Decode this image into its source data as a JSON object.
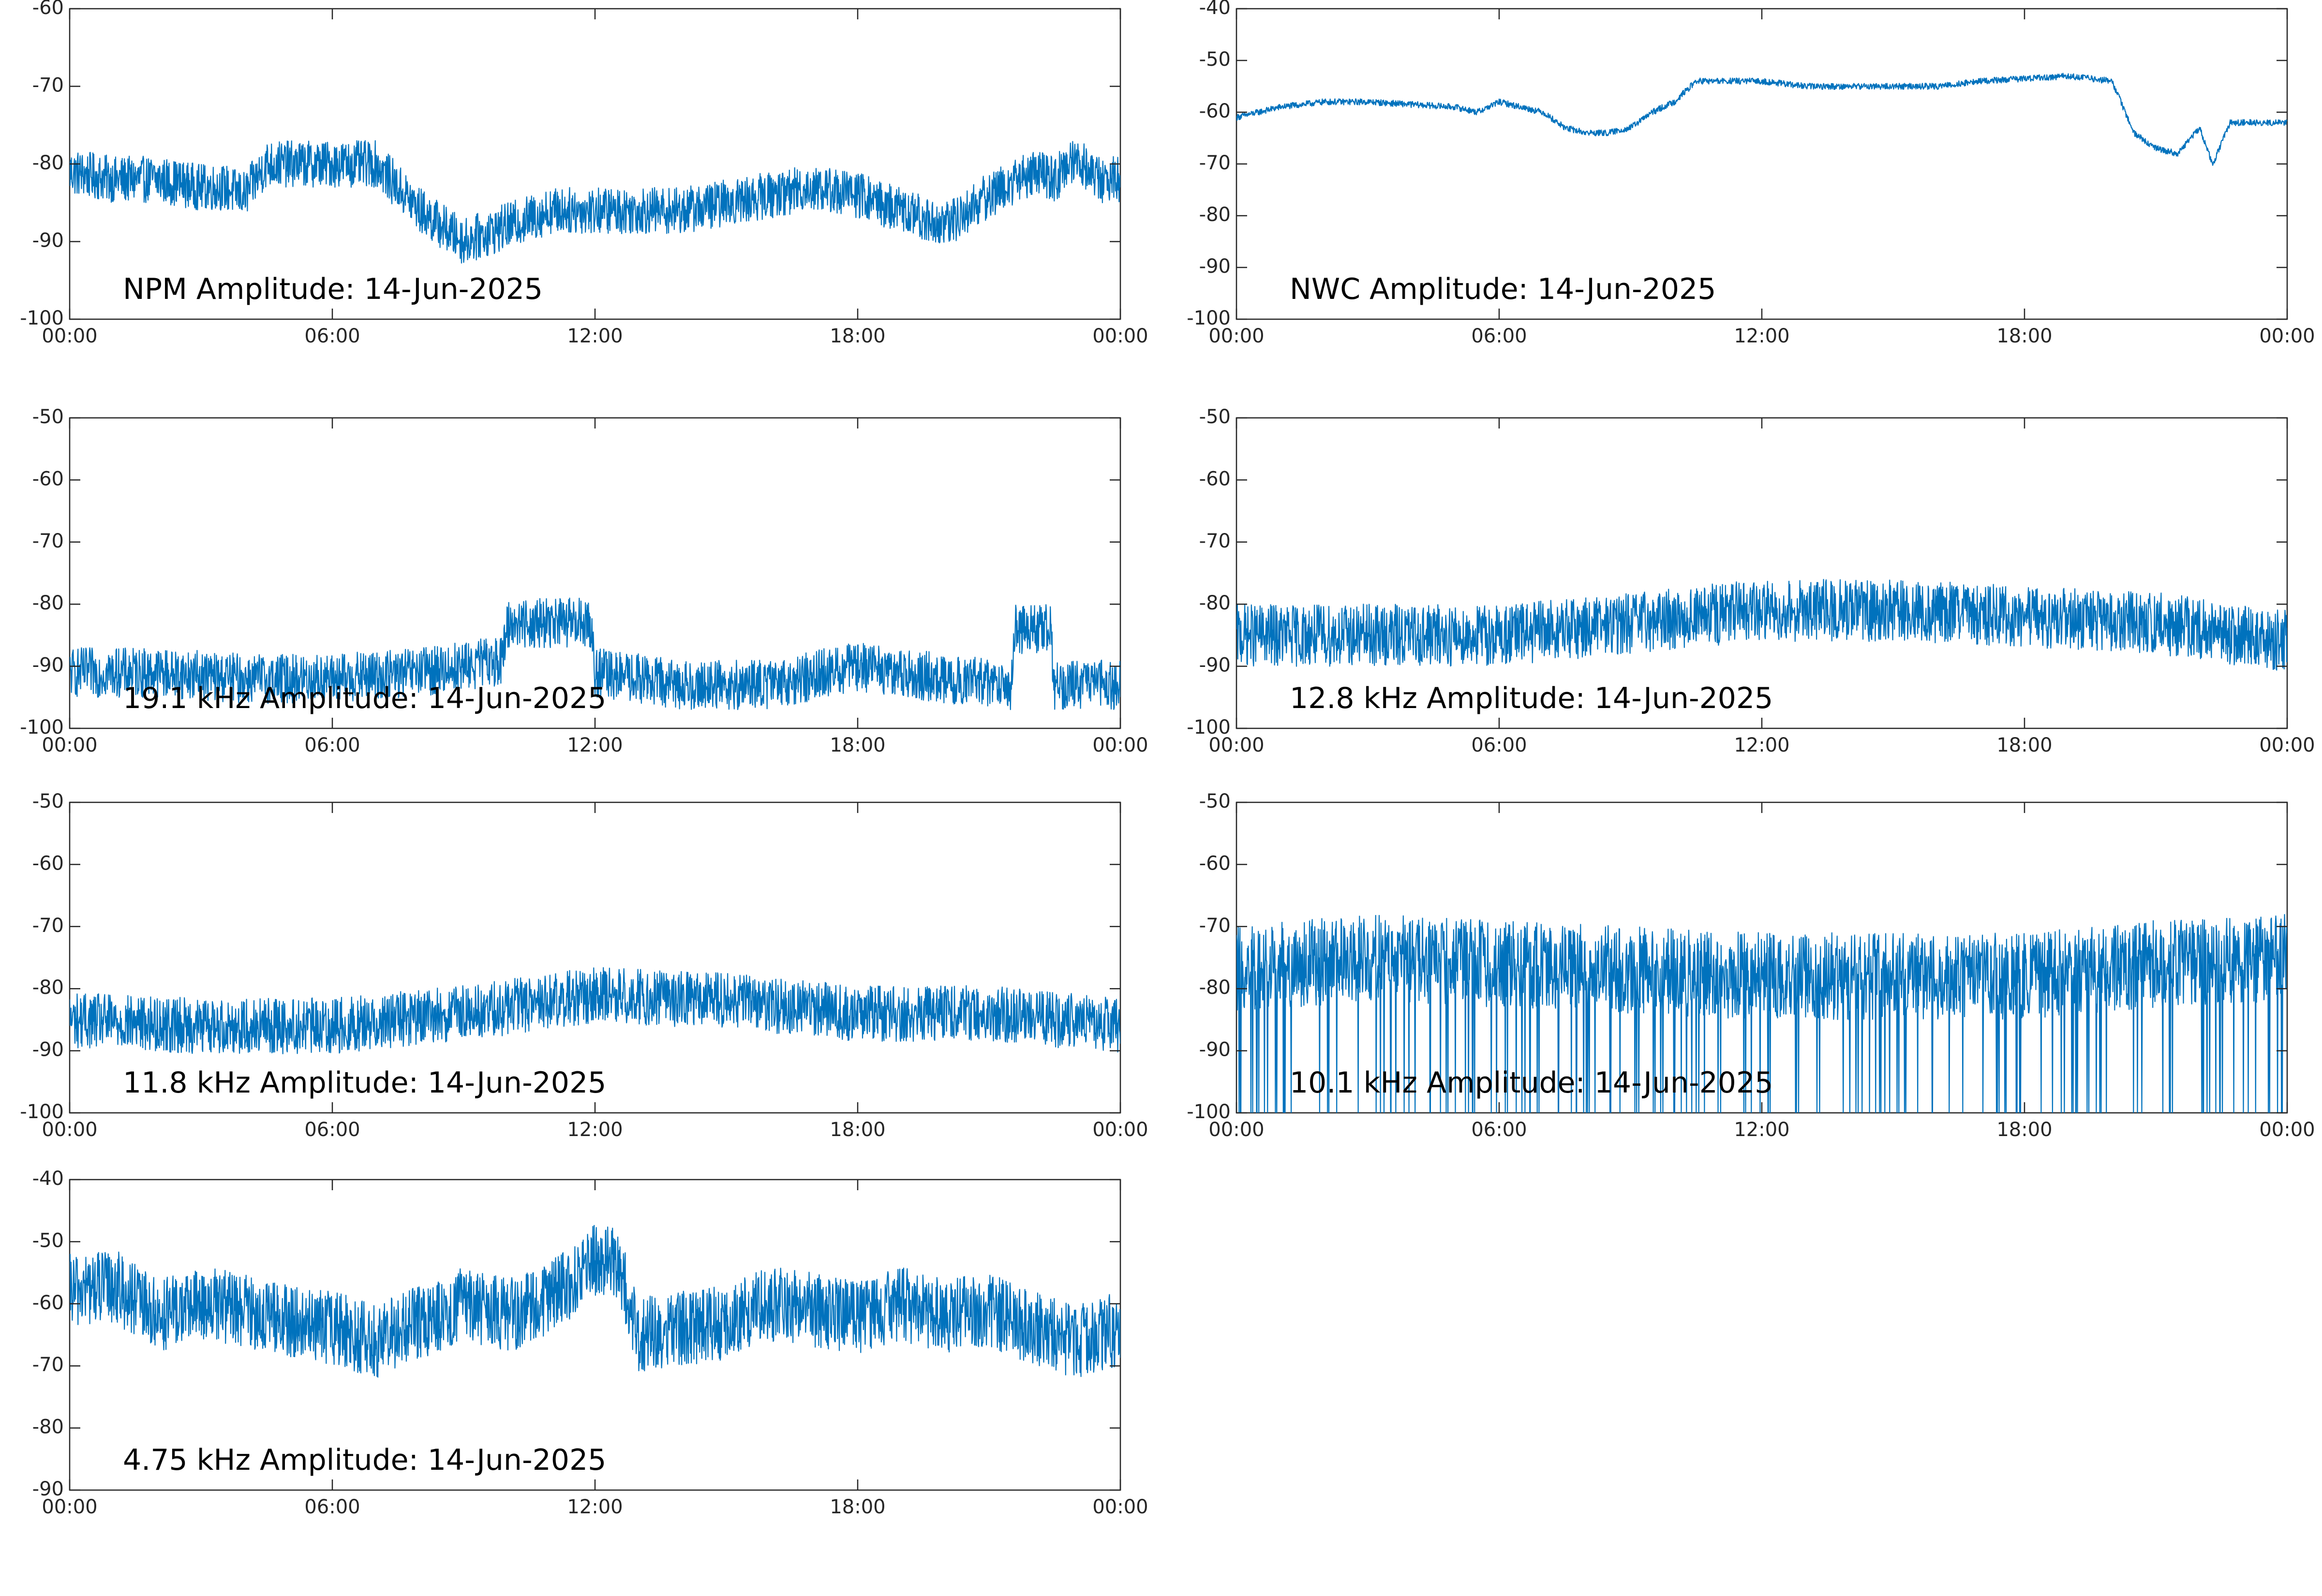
{
  "chart_data": [
    {
      "type": "line",
      "title": "NPM Amplitude: 14-Jun-2025",
      "xlabel": "",
      "ylabel": "",
      "x_tick_labels": [
        "00:00",
        "06:00",
        "12:00",
        "18:00",
        "00:00"
      ],
      "xlim_hours": [
        0,
        24
      ],
      "ylim": [
        -100,
        -60
      ],
      "y_ticks": [
        -100,
        -90,
        -80,
        -70,
        -60
      ],
      "grid": false,
      "series": [
        {
          "color": "#0072BD",
          "x_hours": [
            0,
            1,
            2,
            3,
            3.5,
            4,
            4.5,
            5,
            6,
            7,
            8,
            8.5,
            9,
            10,
            11,
            12,
            13,
            14,
            15,
            16,
            17,
            18,
            19,
            20,
            21,
            22,
            22.5,
            23,
            23.5,
            24
          ],
          "values": [
            -81,
            -82,
            -82,
            -83,
            -83,
            -84,
            -80,
            -80,
            -80,
            -80,
            -86,
            -88,
            -90,
            -88,
            -86,
            -86,
            -86,
            -86,
            -85,
            -84,
            -83,
            -84,
            -86,
            -88,
            -84,
            -81,
            -82,
            -79,
            -82,
            -82
          ],
          "noise_band": 3
        }
      ]
    },
    {
      "type": "line",
      "title": "NWC Amplitude: 14-Jun-2025",
      "xlabel": "",
      "ylabel": "",
      "x_tick_labels": [
        "00:00",
        "06:00",
        "12:00",
        "18:00",
        "00:00"
      ],
      "xlim_hours": [
        0,
        24
      ],
      "ylim": [
        -100,
        -40
      ],
      "y_ticks": [
        -100,
        -90,
        -80,
        -70,
        -60,
        -50,
        -40
      ],
      "grid": false,
      "series": [
        {
          "color": "#0072BD",
          "x_hours": [
            0,
            1,
            2,
            3,
            4,
            5,
            5.5,
            6,
            7,
            7.5,
            8,
            8.5,
            9,
            9.5,
            10,
            10.5,
            11,
            12,
            13,
            14,
            15,
            16,
            17,
            18,
            19,
            20,
            20.5,
            21,
            21.5,
            22,
            22.3,
            22.7,
            23,
            23.5,
            24
          ],
          "values": [
            -61,
            -59,
            -58,
            -58,
            -58.5,
            -59,
            -60,
            -58,
            -60,
            -63,
            -64,
            -64,
            -63,
            -60,
            -58,
            -54,
            -54,
            -54,
            -55,
            -55,
            -55,
            -55,
            -54,
            -53.5,
            -53,
            -54,
            -64,
            -67,
            -68,
            -63,
            -70,
            -62,
            -62,
            -62,
            -62
          ],
          "noise_band": 0.6
        }
      ]
    },
    {
      "type": "line",
      "title": "19.1 kHz Amplitude: 14-Jun-2025",
      "xlabel": "",
      "ylabel": "",
      "x_tick_labels": [
        "00:00",
        "06:00",
        "12:00",
        "18:00",
        "00:00"
      ],
      "xlim_hours": [
        0,
        24
      ],
      "ylim": [
        -100,
        -50
      ],
      "y_ticks": [
        -100,
        -90,
        -80,
        -70,
        -60,
        -50
      ],
      "grid": false,
      "series": [
        {
          "color": "#0072BD",
          "x_hours": [
            0,
            2,
            4,
            6,
            8,
            9.9,
            10,
            11,
            11.9,
            12,
            14,
            16,
            18,
            20,
            21.5,
            21.6,
            22.4,
            22.5,
            24
          ],
          "values": [
            -91,
            -91,
            -92,
            -92,
            -91,
            -89,
            -83,
            -83,
            -83,
            -91,
            -93,
            -93,
            -90,
            -92,
            -93,
            -84,
            -84,
            -93,
            -93
          ],
          "noise_band": 4
        }
      ]
    },
    {
      "type": "line",
      "title": "12.8 kHz Amplitude: 14-Jun-2025",
      "xlabel": "",
      "ylabel": "",
      "x_tick_labels": [
        "00:00",
        "06:00",
        "12:00",
        "18:00",
        "00:00"
      ],
      "xlim_hours": [
        0,
        24
      ],
      "ylim": [
        -100,
        -50
      ],
      "y_ticks": [
        -100,
        -90,
        -80,
        -70,
        -60,
        -50
      ],
      "grid": false,
      "series": [
        {
          "color": "#0072BD",
          "x_hours": [
            0,
            3,
            6,
            9,
            12,
            15,
            18,
            21,
            24
          ],
          "values": [
            -85,
            -85,
            -85,
            -83,
            -81,
            -81,
            -82,
            -83,
            -86
          ],
          "noise_band": 5
        }
      ]
    },
    {
      "type": "line",
      "title": "11.8 kHz Amplitude: 14-Jun-2025",
      "xlabel": "",
      "ylabel": "",
      "x_tick_labels": [
        "00:00",
        "06:00",
        "12:00",
        "18:00",
        "00:00"
      ],
      "xlim_hours": [
        0,
        24
      ],
      "ylim": [
        -100,
        -50
      ],
      "y_ticks": [
        -100,
        -90,
        -80,
        -70,
        -60,
        -50
      ],
      "grid": false,
      "series": [
        {
          "color": "#0072BD",
          "x_hours": [
            0,
            3,
            6,
            9,
            12,
            15,
            18,
            21,
            24
          ],
          "values": [
            -85,
            -86,
            -86,
            -84,
            -81,
            -82,
            -84,
            -84,
            -86
          ],
          "noise_band": 4.5
        }
      ]
    },
    {
      "type": "line",
      "title": "10.1 kHz Amplitude: 14-Jun-2025",
      "xlabel": "",
      "ylabel": "",
      "x_tick_labels": [
        "00:00",
        "06:00",
        "12:00",
        "18:00",
        "00:00"
      ],
      "xlim_hours": [
        0,
        24
      ],
      "ylim": [
        -100,
        -50
      ],
      "y_ticks": [
        -100,
        -90,
        -80,
        -70,
        -60,
        -50
      ],
      "grid": false,
      "series": [
        {
          "color": "#0072BD",
          "x_hours": [
            0,
            3,
            6,
            9,
            12,
            15,
            18,
            21,
            24
          ],
          "values": [
            -77,
            -75,
            -76,
            -77,
            -78,
            -78,
            -78,
            -76,
            -75
          ],
          "noise_band": 7,
          "dropout_floor": -100
        }
      ]
    },
    {
      "type": "line",
      "title": "4.75 kHz Amplitude: 14-Jun-2025",
      "xlabel": "",
      "ylabel": "",
      "x_tick_labels": [
        "00:00",
        "06:00",
        "12:00",
        "18:00",
        "00:00"
      ],
      "xlim_hours": [
        0,
        24
      ],
      "ylim": [
        -90,
        -40
      ],
      "y_ticks": [
        -90,
        -80,
        -70,
        -60,
        -50,
        -40
      ],
      "grid": false,
      "series": [
        {
          "color": "#0072BD",
          "x_hours": [
            0,
            1,
            2,
            3,
            4,
            5,
            6,
            7,
            8,
            9,
            10,
            11,
            12,
            12.5,
            13,
            14,
            15,
            16,
            17,
            18,
            19,
            20,
            21,
            22,
            23,
            24
          ],
          "values": [
            -58,
            -57,
            -62,
            -60,
            -61,
            -63,
            -64,
            -66,
            -63,
            -60,
            -62,
            -59,
            -53,
            -53,
            -65,
            -64,
            -63,
            -60,
            -61,
            -62,
            -60,
            -62,
            -61,
            -64,
            -66,
            -64
          ],
          "noise_band": 6
        }
      ]
    }
  ]
}
